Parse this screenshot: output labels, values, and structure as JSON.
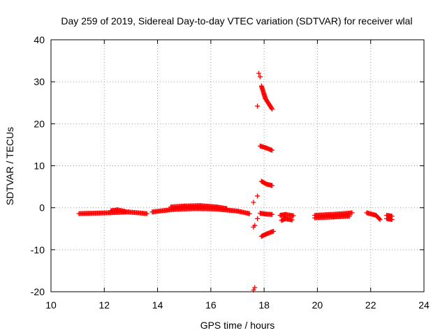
{
  "chart_data": {
    "type": "scatter",
    "title": "Day 259 of 2019, Sidereal Day-to-day VTEC variation (SDTVAR) for receiver wlal",
    "xlabel": "GPS time / hours",
    "ylabel": "SDTVAR / TECUs",
    "xlim": [
      10,
      24
    ],
    "ylim": [
      -20,
      40
    ],
    "xticks": [
      10,
      12,
      14,
      16,
      18,
      20,
      22,
      24
    ],
    "yticks": [
      -20,
      -10,
      0,
      10,
      20,
      30,
      40
    ],
    "grid": true,
    "marker": "+",
    "color": "#ff0000",
    "segments": [
      {
        "x": [
          11.05,
          12.2,
          12.9,
          13.6
        ],
        "y": [
          -1.4,
          -1.2,
          -1.0,
          -1.4
        ]
      },
      {
        "x": [
          12.25,
          12.5,
          12.8
        ],
        "y": [
          -0.7,
          -0.5,
          -0.9
        ]
      },
      {
        "x": [
          13.8,
          14.6,
          15.4,
          16.2,
          17.0,
          17.45
        ],
        "y": [
          -1.0,
          -0.4,
          -0.2,
          -0.3,
          -0.8,
          -1.4
        ]
      },
      {
        "x": [
          14.5,
          15.0,
          15.6,
          16.2,
          16.6
        ],
        "y": [
          0.2,
          0.4,
          0.5,
          0.2,
          -0.2
        ]
      },
      {
        "x": [
          17.85,
          18.05,
          18.3
        ],
        "y": [
          -1.3,
          -1.5,
          -1.6
        ]
      },
      {
        "x": [
          18.6,
          18.8,
          19.1
        ],
        "y": [
          -1.8,
          -1.6,
          -1.9
        ]
      },
      {
        "x": [
          18.65,
          18.8,
          19.05
        ],
        "y": [
          -3.0,
          -2.6,
          -2.9
        ]
      },
      {
        "x": [
          19.9,
          20.5,
          21.0,
          21.3
        ],
        "y": [
          -1.8,
          -1.6,
          -1.4,
          -1.2
        ]
      },
      {
        "x": [
          19.9,
          20.6,
          21.2
        ],
        "y": [
          -2.4,
          -2.2,
          -2.0
        ]
      },
      {
        "x": [
          21.85,
          22.2,
          22.35
        ],
        "y": [
          -1.2,
          -1.8,
          -2.8
        ]
      },
      {
        "x": [
          22.6,
          22.8
        ],
        "y": [
          -1.8,
          -2.0
        ]
      },
      {
        "x": [
          22.6,
          22.8
        ],
        "y": [
          -2.6,
          -2.8
        ]
      },
      {
        "x": [
          17.9,
          18.05,
          18.3
        ],
        "y": [
          29.0,
          26.0,
          23.5
        ]
      },
      {
        "x": [
          17.85,
          18.05,
          18.3
        ],
        "y": [
          14.7,
          14.3,
          13.7
        ]
      },
      {
        "x": [
          17.9,
          18.1,
          18.3
        ],
        "y": [
          6.3,
          5.6,
          5.3
        ]
      },
      {
        "x": [
          17.9,
          18.1,
          18.35
        ],
        "y": [
          -6.8,
          -6.2,
          -5.6
        ]
      }
    ],
    "points": [
      {
        "x": 17.8,
        "y": 32.0
      },
      {
        "x": 17.85,
        "y": 31.2
      },
      {
        "x": 17.75,
        "y": 24.2
      },
      {
        "x": 17.6,
        "y": 1.3
      },
      {
        "x": 17.75,
        "y": 2.8
      },
      {
        "x": 17.6,
        "y": -4.6
      },
      {
        "x": 17.65,
        "y": -4.2
      },
      {
        "x": 17.75,
        "y": -2.6
      },
      {
        "x": 17.6,
        "y": -19.6
      },
      {
        "x": 17.65,
        "y": -19.0
      }
    ]
  }
}
